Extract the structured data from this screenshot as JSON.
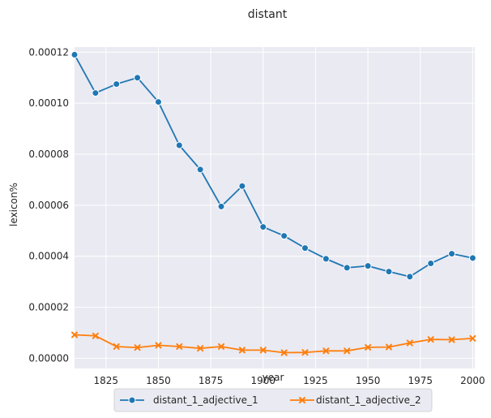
{
  "chart_data": {
    "type": "line",
    "title": "distant",
    "xlabel": "year",
    "ylabel": "lexicon%",
    "xlim": [
      1810,
      2001
    ],
    "ylim": [
      -4e-06,
      0.000122
    ],
    "x_ticks": [
      1825,
      1850,
      1875,
      1900,
      1925,
      1950,
      1975,
      2000
    ],
    "y_ticks": [
      0.0,
      2e-05,
      4e-05,
      6e-05,
      8e-05,
      0.0001,
      0.00012
    ],
    "x_tick_labels": [
      "1825",
      "1850",
      "1875",
      "1900",
      "1925",
      "1950",
      "1975",
      "2000"
    ],
    "y_tick_labels": [
      "0.00000",
      "0.00002",
      "0.00004",
      "0.00006",
      "0.00008",
      "0.00010",
      "0.00012"
    ],
    "grid": true,
    "legend_position": "bottom-center",
    "x": [
      1810,
      1820,
      1830,
      1840,
      1850,
      1860,
      1870,
      1880,
      1890,
      1900,
      1910,
      1920,
      1930,
      1940,
      1950,
      1960,
      1970,
      1980,
      1990,
      2000
    ],
    "series": [
      {
        "name": "distant_1_adjective_1",
        "color": "#1f77b4",
        "marker": "circle",
        "values": [
          0.000119,
          0.000104,
          0.0001075,
          0.00011,
          0.0001005,
          8.35e-05,
          7.4e-05,
          5.95e-05,
          6.75e-05,
          5.15e-05,
          4.8e-05,
          4.32e-05,
          3.9e-05,
          3.55e-05,
          3.62e-05,
          3.4e-05,
          3.2e-05,
          3.72e-05,
          4.1e-05,
          3.93e-05
        ]
      },
      {
        "name": "distant_1_adjective_2",
        "color": "#ff7f0e",
        "marker": "x",
        "values": [
          9.2e-06,
          8.8e-06,
          4.6e-06,
          4.2e-06,
          5.1e-06,
          4.6e-06,
          3.9e-06,
          4.6e-06,
          3.2e-06,
          3.2e-06,
          2.2e-06,
          2.3e-06,
          2.9e-06,
          2.9e-06,
          4.3e-06,
          4.4e-06,
          6e-06,
          7.4e-06,
          7.3e-06,
          7.8e-06
        ]
      }
    ]
  }
}
